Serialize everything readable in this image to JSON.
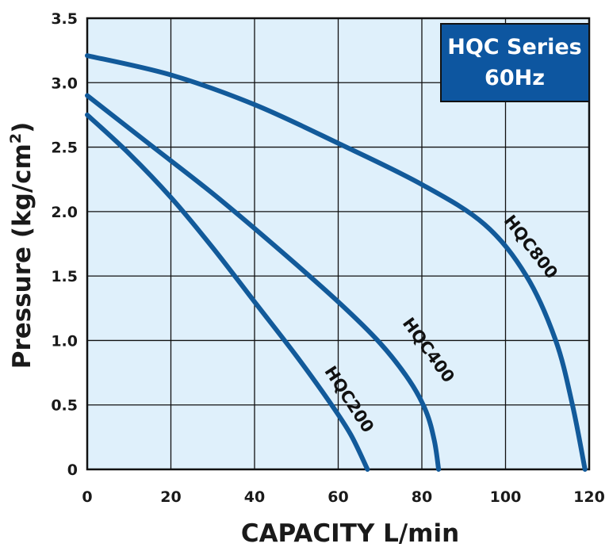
{
  "chart_data": {
    "type": "line",
    "title": "HQC Series",
    "subtitle": "60Hz",
    "xlabel": "CAPACITY L/min",
    "ylabel": "Pressure (kg/cm²)",
    "ylabel_base": "Pressure (kg/cm",
    "ylabel_sup": "2",
    "ylabel_close": ")",
    "xlim": [
      0,
      120
    ],
    "ylim": [
      0,
      3.5
    ],
    "x_ticks": [
      "0",
      "20",
      "40",
      "60",
      "80",
      "100",
      "120"
    ],
    "y_ticks": [
      "0",
      "0.5",
      "1.0",
      "1.5",
      "2.0",
      "2.5",
      "3.0",
      "3.5"
    ],
    "grid": true,
    "series": [
      {
        "name": "HQC800",
        "x": [
          0,
          20,
          40,
          60,
          80,
          95,
          105,
          112,
          116,
          119
        ],
        "y": [
          3.21,
          3.06,
          2.83,
          2.53,
          2.21,
          1.9,
          1.5,
          1.0,
          0.5,
          0.0
        ]
      },
      {
        "name": "HQC400",
        "x": [
          0,
          15,
          30,
          45,
          60,
          70,
          77,
          81,
          83,
          84
        ],
        "y": [
          2.9,
          2.52,
          2.14,
          1.73,
          1.3,
          0.98,
          0.69,
          0.45,
          0.22,
          0.0
        ]
      },
      {
        "name": "HQC200",
        "x": [
          0,
          10,
          20,
          30,
          40,
          50,
          58,
          63,
          67
        ],
        "y": [
          2.75,
          2.45,
          2.11,
          1.72,
          1.3,
          0.88,
          0.52,
          0.27,
          0.0
        ]
      }
    ],
    "colors": {
      "curve": "#125a9a",
      "plot_bg": "#dff0fb",
      "grid": "#111111",
      "legend_bg": "#0d56a0"
    },
    "legend_position": "top-right"
  }
}
